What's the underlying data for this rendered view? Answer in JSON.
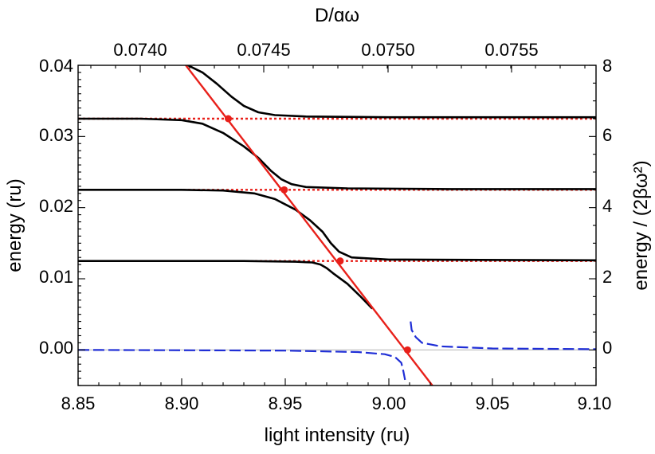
{
  "chart_data": {
    "type": "line",
    "xlabel": "light intensity (ru)",
    "ylabel": "energy (ru)",
    "top_xlabel": "D/ɑω",
    "right_ylabel": "energy / (2βω²)",
    "xlim": [
      8.85,
      9.1
    ],
    "ylim": [
      -0.005,
      0.04
    ],
    "x_ticks": [
      "8.85",
      "8.90",
      "8.95",
      "9.00",
      "9.05",
      "9.10"
    ],
    "y_ticks": [
      "0.00",
      "0.01",
      "0.02",
      "0.03",
      "0.04"
    ],
    "top_ticks": [
      "0.0740",
      "0.0745",
      "0.0750",
      "0.0755"
    ],
    "right_ticks": [
      "0",
      "2",
      "4",
      "6",
      "8"
    ],
    "grid": false,
    "colors": {
      "solid": "#000000",
      "dotted": "#e8201a",
      "linear": "#e8201a",
      "dashed": "#1f2ed6",
      "zero": "#bbbbbb"
    },
    "series": [
      {
        "style": "solid",
        "points": [
          [
            8.85,
            0.0325
          ],
          [
            8.88,
            0.0325
          ],
          [
            8.9,
            0.0323
          ],
          [
            8.91,
            0.0318
          ],
          [
            8.92,
            0.0305
          ],
          [
            8.93,
            0.0286
          ],
          [
            8.937,
            0.027
          ],
          [
            8.943,
            0.0252
          ],
          [
            8.948,
            0.024
          ],
          [
            8.953,
            0.0233
          ],
          [
            8.96,
            0.0229
          ],
          [
            8.98,
            0.0227
          ],
          [
            9.03,
            0.0226
          ],
          [
            9.1,
            0.0226
          ]
        ]
      },
      {
        "style": "solid",
        "points": [
          [
            8.85,
            0.0225
          ],
          [
            8.9,
            0.0225
          ],
          [
            8.92,
            0.0224
          ],
          [
            8.935,
            0.022
          ],
          [
            8.945,
            0.0212
          ],
          [
            8.955,
            0.0197
          ],
          [
            8.962,
            0.0182
          ],
          [
            8.968,
            0.0166
          ],
          [
            8.972,
            0.015
          ],
          [
            8.976,
            0.0138
          ],
          [
            8.982,
            0.013
          ],
          [
            9.0,
            0.0127
          ],
          [
            9.1,
            0.0126
          ]
        ]
      },
      {
        "style": "solid",
        "points": [
          [
            8.85,
            0.0125
          ],
          [
            8.93,
            0.0125
          ],
          [
            8.955,
            0.0124
          ],
          [
            8.963,
            0.0123
          ],
          [
            8.967,
            0.012
          ],
          [
            8.97,
            0.0115
          ],
          [
            8.973,
            0.0108
          ],
          [
            8.98,
            0.0093
          ],
          [
            8.986,
            0.0076
          ],
          [
            8.992,
            0.0058
          ]
        ]
      },
      {
        "style": "solid",
        "points": [
          [
            8.903,
            0.04
          ],
          [
            8.91,
            0.039
          ],
          [
            8.917,
            0.0374
          ],
          [
            8.924,
            0.0356
          ],
          [
            8.93,
            0.0343
          ],
          [
            8.937,
            0.0334
          ],
          [
            8.945,
            0.033
          ],
          [
            8.96,
            0.0328
          ],
          [
            9.0,
            0.0327
          ],
          [
            9.1,
            0.0327
          ]
        ]
      },
      {
        "style": "dotted",
        "points": [
          [
            8.85,
            0.0325
          ],
          [
            9.1,
            0.0325
          ]
        ]
      },
      {
        "style": "dotted",
        "points": [
          [
            8.85,
            0.0225
          ],
          [
            9.1,
            0.0225
          ]
        ]
      },
      {
        "style": "dotted",
        "points": [
          [
            8.85,
            0.0125
          ],
          [
            9.1,
            0.0125
          ]
        ]
      },
      {
        "style": "linear",
        "points": [
          [
            8.902,
            0.04
          ],
          [
            9.021,
            -0.005
          ]
        ]
      },
      {
        "style": "dashed",
        "points": [
          [
            8.85,
            0.0
          ],
          [
            8.95,
            -0.0001
          ],
          [
            8.985,
            -0.0003
          ],
          [
            8.998,
            -0.0006
          ],
          [
            9.003,
            -0.001
          ],
          [
            9.006,
            -0.0018
          ],
          [
            9.007,
            -0.003
          ],
          [
            9.0078,
            -0.0042
          ]
        ]
      },
      {
        "style": "dashed",
        "points": [
          [
            9.0105,
            0.004
          ],
          [
            9.011,
            0.0028
          ],
          [
            9.013,
            0.0018
          ],
          [
            9.016,
            0.001
          ],
          [
            9.025,
            0.0005
          ],
          [
            9.05,
            0.0002
          ],
          [
            9.1,
            0.0001
          ]
        ]
      }
    ],
    "markers": [
      [
        8.9225,
        0.0325
      ],
      [
        8.9495,
        0.0225
      ],
      [
        8.9765,
        0.0125
      ],
      [
        9.009,
        0.0
      ]
    ]
  }
}
